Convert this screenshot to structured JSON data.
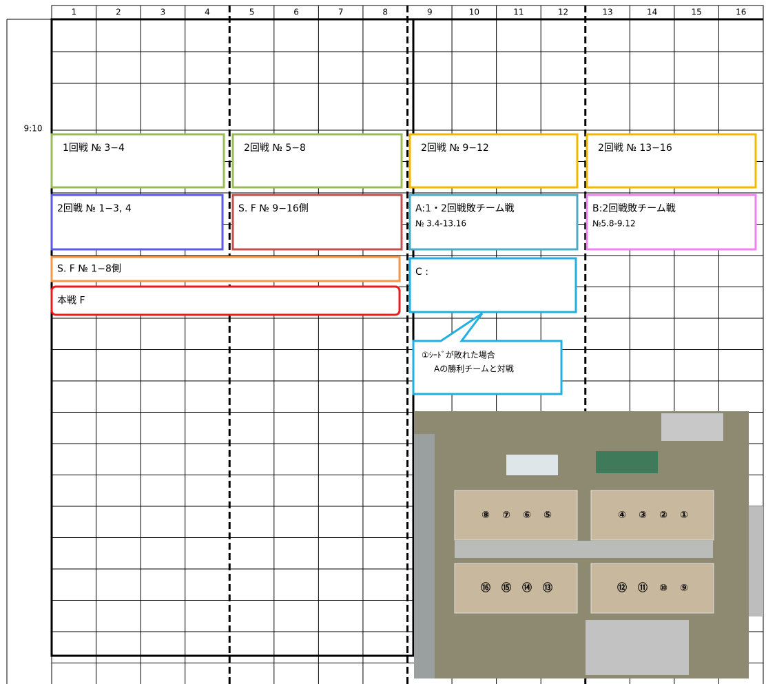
{
  "columns": [
    "1",
    "2",
    "3",
    "4",
    "5",
    "6",
    "7",
    "8",
    "9",
    "10",
    "11",
    "12",
    "13",
    "14",
    "15",
    "16"
  ],
  "time_label": "9:10",
  "boxes": [
    {
      "lines": [
        "1回戦 № 3−4"
      ]
    },
    {
      "lines": [
        "2回戦 № 5−8"
      ]
    },
    {
      "lines": [
        "2回戦 № 9−12"
      ]
    },
    {
      "lines": [
        "2回戦 № 13−16"
      ]
    },
    {
      "lines": [
        "2回戦 № 1−3, 4"
      ]
    },
    {
      "lines": [
        "S. F № 9−16側"
      ]
    },
    {
      "lines": [
        "A:1・2回戦敗チーム戦",
        "№ 3.4-13.16"
      ]
    },
    {
      "lines": [
        "B:2回戦敗チーム戦",
        "№5.8-9.12"
      ]
    },
    {
      "lines": [
        "S. F № 1−8側"
      ]
    },
    {
      "lines": [
        "本戦 F"
      ]
    },
    {
      "lines": [
        "C :"
      ]
    }
  ],
  "callout": {
    "lines": [
      "①ｼｰﾄﾞが敗れた場合",
      "Aの勝利チームと対戦"
    ]
  },
  "photo": {
    "courts_top_left": [
      "⑧",
      "⑦",
      "⑥",
      "⑤"
    ],
    "courts_top_right": [
      "④",
      "③",
      "②",
      "①"
    ],
    "courts_bottom_left": [
      "⑯",
      "⑮",
      "⑭",
      "⑬"
    ],
    "courts_bottom_right": [
      "⑫",
      "⑪",
      "⑩",
      "⑨"
    ]
  }
}
